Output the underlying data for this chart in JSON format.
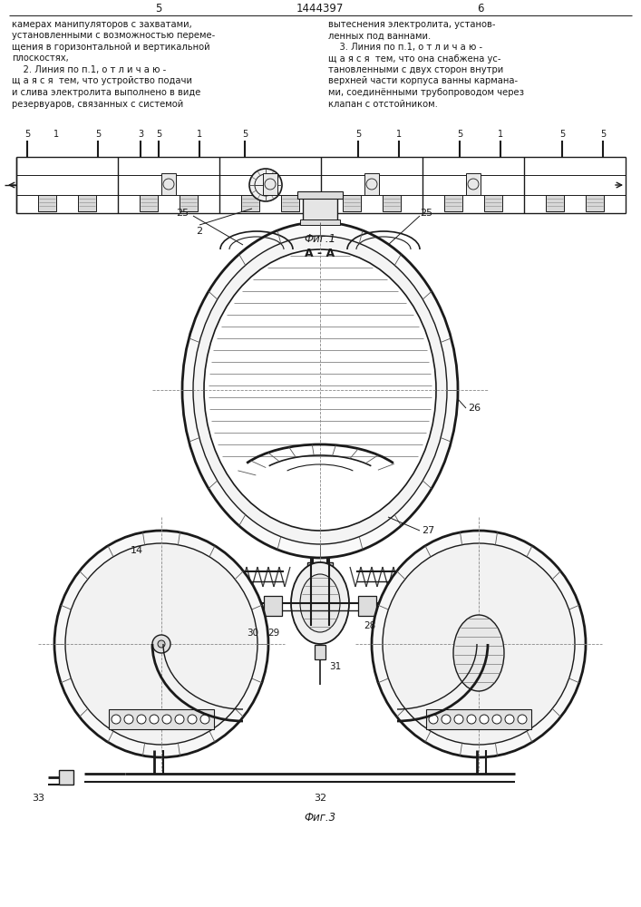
{
  "bg_color": "#ffffff",
  "text_color": "#1a1a1a",
  "line_color": "#1a1a1a",
  "page_width": 7.07,
  "page_height": 10.0,
  "header": {
    "page_left": "5",
    "patent_num": "1444397",
    "page_right": "6"
  },
  "col_left_text": [
    "камерах манипуляторов с захватами,",
    "установленными с возможностью переме-",
    "щения в горизонтальной и вертикальной",
    "плоскостях,",
    "    2. Линия по п.1, о т л и ч а ю -",
    "щ а я с я  тем, что устройство подачи",
    "и слива электролита выполнено в виде",
    "резервуаров, связанных с системой"
  ],
  "col_right_text": [
    "вытеснения электролита, установ-",
    "ленных под ваннами.",
    "    3. Линия по п.1, о т л и ч а ю -",
    "щ а я с я  тем, что она снабжена ус-",
    "тановленными с двух сторон внутри",
    "верхней части корпуса ванны карманa-",
    "ми, соединёнными трубопроводом через",
    "клапан с отстойником."
  ],
  "fig1_label": "Фиг.1",
  "fig3_label": "Фиг.3",
  "aa_label": "А - А"
}
